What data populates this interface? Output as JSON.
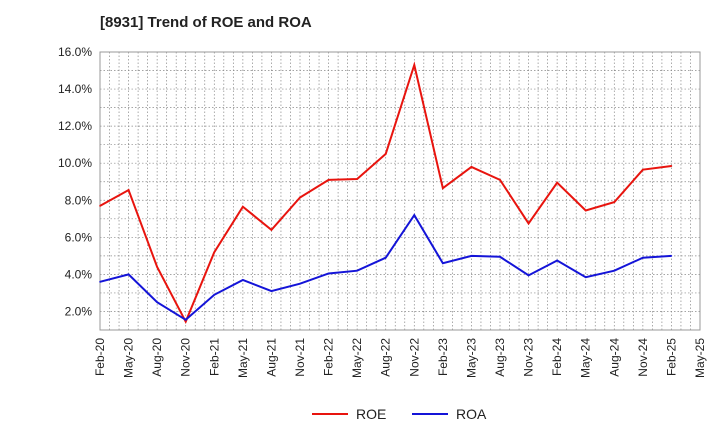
{
  "chart_data": {
    "type": "line",
    "title": "[8931]  Trend of ROE and ROA",
    "xlabel": "",
    "ylabel": "",
    "ylim": [
      1.0,
      16.0
    ],
    "y_ticks": [
      "2.0%",
      "4.0%",
      "6.0%",
      "8.0%",
      "10.0%",
      "12.0%",
      "14.0%",
      "16.0%"
    ],
    "x_ticks": [
      "Feb-20",
      "May-20",
      "Aug-20",
      "Nov-20",
      "Feb-21",
      "May-21",
      "Aug-21",
      "Nov-21",
      "Feb-22",
      "May-22",
      "Aug-22",
      "Nov-22",
      "Feb-23",
      "May-23",
      "Aug-23",
      "Nov-23",
      "Feb-24",
      "May-24",
      "Aug-24",
      "Nov-24",
      "Feb-25",
      "May-25"
    ],
    "x": [
      "Feb-20",
      "May-20",
      "Aug-20",
      "Nov-20",
      "Feb-21",
      "May-21",
      "Aug-21",
      "Nov-21",
      "Feb-22",
      "May-22",
      "Aug-22",
      "Nov-22",
      "Feb-23",
      "May-23",
      "Aug-23",
      "Nov-23",
      "Feb-24",
      "May-24",
      "Aug-24",
      "Nov-24",
      "Feb-25"
    ],
    "grid": true,
    "legend_position": "bottom-center",
    "series": [
      {
        "name": "ROE",
        "color": "#e8140e",
        "values": [
          7.7,
          8.55,
          4.4,
          1.45,
          5.2,
          7.65,
          6.4,
          8.15,
          9.1,
          9.15,
          10.5,
          15.3,
          8.65,
          9.8,
          9.1,
          6.75,
          8.95,
          7.45,
          7.9,
          9.65,
          9.85
        ]
      },
      {
        "name": "ROA",
        "color": "#1414d8",
        "values": [
          3.6,
          4.0,
          2.5,
          1.55,
          2.9,
          3.7,
          3.1,
          3.5,
          4.05,
          4.2,
          4.9,
          7.2,
          4.6,
          5.0,
          4.95,
          3.95,
          4.75,
          3.85,
          4.2,
          4.9,
          5.0
        ]
      }
    ]
  }
}
